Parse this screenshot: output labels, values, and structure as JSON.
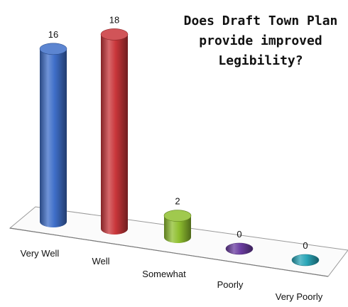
{
  "chart_data": {
    "type": "bar",
    "title_lines": [
      "Does Draft Town Plan",
      "provide improved",
      "Legibility?"
    ],
    "categories": [
      "Very Well",
      "Well",
      "Somewhat",
      "Poorly",
      "Very Poorly"
    ],
    "values": [
      16,
      18,
      2,
      0,
      0
    ],
    "colors": [
      "#3f6fc9",
      "#c9363a",
      "#8fbf2f",
      "#6a3ca0",
      "#2aa6b8"
    ],
    "ylim": [
      0,
      18
    ],
    "grid": false,
    "legend": "none"
  }
}
